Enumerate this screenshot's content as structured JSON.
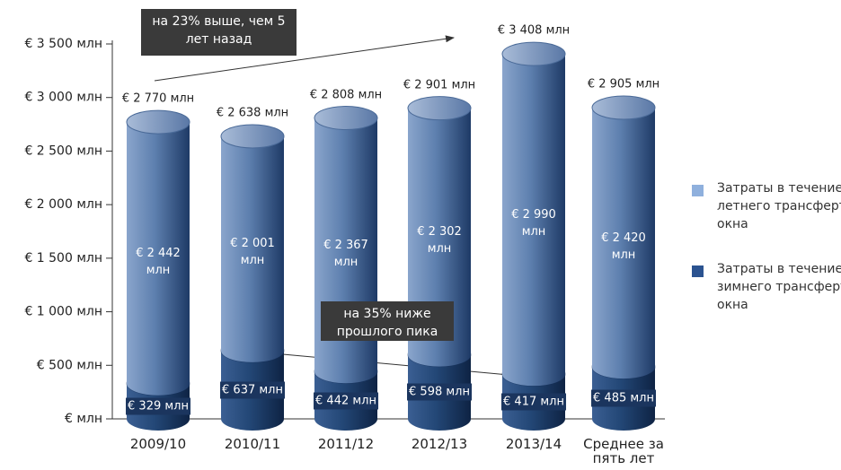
{
  "chart_data": {
    "type": "stacked-cylinder",
    "categories": [
      "2009/10",
      "2010/11",
      "2011/12",
      "2012/13",
      "2013/14",
      "Среднее за пять лет"
    ],
    "series": [
      {
        "name": "Затраты в течение зимнего трансфертного окна",
        "color": "#1f3f6e",
        "values": [
          329,
          637,
          442,
          598,
          417,
          485
        ],
        "value_labels": [
          "€ 329 млн",
          "€ 637 млн",
          "€ 442 млн",
          "€ 598 млн",
          "€ 417 млн",
          "€ 485 млн"
        ]
      },
      {
        "name": "Затраты в течение летнего трансфертного окна",
        "color": "#6f8fbd",
        "values": [
          2442,
          2001,
          2367,
          2302,
          2990,
          2420
        ],
        "value_labels": [
          "€ 2 442 млн",
          "€ 2 001 млн",
          "€ 2 367 млн",
          "€ 2 302 млн",
          "€ 2 990 млн",
          "€ 2 420 млн"
        ]
      }
    ],
    "totals": {
      "values": [
        2770,
        2638,
        2808,
        2901,
        3408,
        2905
      ],
      "value_labels": [
        "€ 2 770 млн",
        "€ 2 638 млн",
        "€ 2 808 млн",
        "€ 2 901 млн",
        "€ 3 408 млн",
        "€ 2 905 млн"
      ]
    },
    "ylim": [
      0,
      3500
    ],
    "yticks": [
      {
        "value": 0,
        "label": "€ млн"
      },
      {
        "value": 500,
        "label": "€ 500 млн"
      },
      {
        "value": 1000,
        "label": "€ 1 000 млн"
      },
      {
        "value": 1500,
        "label": "€ 1 500 млн"
      },
      {
        "value": 2000,
        "label": "€ 2 000 млн"
      },
      {
        "value": 2500,
        "label": "€ 2 500 млн"
      },
      {
        "value": 3000,
        "label": "€ 3 000 млн"
      },
      {
        "value": 3500,
        "label": "€ 3 500 млн"
      }
    ],
    "annotations": [
      "на 23% выше, чем 5 лет назад",
      "на 35% ниже прошлого пика"
    ]
  }
}
